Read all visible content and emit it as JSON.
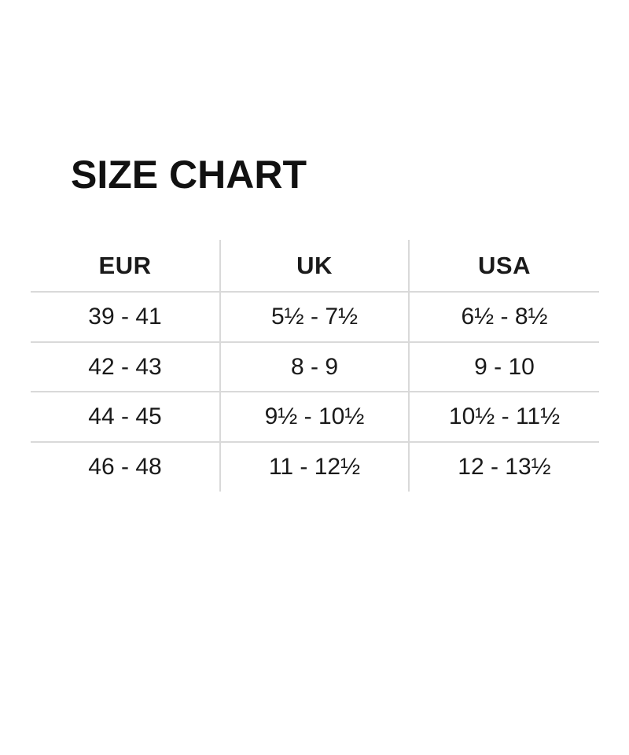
{
  "page": {
    "title": "SIZE CHART",
    "background_color": "#ffffff",
    "text_color": "#1a1a1a",
    "grid_line_color": "#d9d9d9"
  },
  "chart_data": {
    "type": "table",
    "title": "SIZE CHART",
    "columns": [
      "EUR",
      "UK",
      "USA"
    ],
    "rows": [
      [
        "39 - 41",
        "5½ - 7½",
        "6½ - 8½"
      ],
      [
        "42 - 43",
        "8 - 9",
        "9 - 10"
      ],
      [
        "44 - 45",
        "9½ - 10½",
        "10½ - 11½"
      ],
      [
        "46 - 48",
        "11 - 12½",
        "12 - 13½"
      ]
    ],
    "layout": {
      "legend": "none",
      "grid": "horizontal-rules-and-column-dividers",
      "header_style": "bold",
      "alignment": "center"
    }
  }
}
